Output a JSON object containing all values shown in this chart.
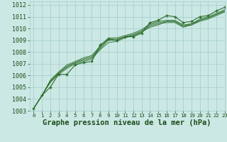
{
  "xlabel": "Graphe pression niveau de la mer (hPa)",
  "xlim": [
    -0.5,
    23
  ],
  "ylim": [
    1003,
    1012.3
  ],
  "yticks": [
    1003,
    1004,
    1005,
    1006,
    1007,
    1008,
    1009,
    1010,
    1011,
    1012
  ],
  "xticks": [
    0,
    1,
    2,
    3,
    4,
    5,
    6,
    7,
    8,
    9,
    10,
    11,
    12,
    13,
    14,
    15,
    16,
    17,
    18,
    19,
    20,
    21,
    22,
    23
  ],
  "bg_color": "#cce8e4",
  "grid_color": "#a0cccc",
  "line_color": "#2d6e2d",
  "series1": [
    1003.2,
    1004.3,
    1005.0,
    1006.1,
    1006.1,
    1006.9,
    1007.1,
    1007.2,
    1008.6,
    1009.1,
    1009.0,
    1009.3,
    1009.3,
    1009.6,
    1010.5,
    1010.7,
    1011.1,
    1011.0,
    1010.5,
    1010.6,
    1011.0,
    1011.1,
    1011.5,
    1011.8
  ],
  "series2": [
    1003.2,
    1004.3,
    1005.4,
    1006.1,
    1006.6,
    1007.0,
    1007.2,
    1007.4,
    1008.2,
    1008.8,
    1008.9,
    1009.2,
    1009.4,
    1009.7,
    1010.1,
    1010.3,
    1010.6,
    1010.6,
    1010.2,
    1010.4,
    1010.7,
    1010.9,
    1011.2,
    1011.5
  ],
  "series3": [
    1003.2,
    1004.3,
    1005.5,
    1006.2,
    1006.7,
    1007.1,
    1007.3,
    1007.5,
    1008.3,
    1009.0,
    1009.0,
    1009.3,
    1009.4,
    1009.7,
    1010.2,
    1010.4,
    1010.5,
    1010.5,
    1010.1,
    1010.3,
    1010.6,
    1010.8,
    1011.1,
    1011.4
  ],
  "series4": [
    1003.2,
    1004.3,
    1005.5,
    1006.2,
    1006.8,
    1007.1,
    1007.4,
    1007.6,
    1008.4,
    1009.1,
    1009.1,
    1009.3,
    1009.5,
    1009.8,
    1010.3,
    1010.5,
    1010.6,
    1010.6,
    1010.2,
    1010.3,
    1010.7,
    1010.9,
    1011.2,
    1011.5
  ],
  "series5": [
    1003.2,
    1004.3,
    1005.6,
    1006.3,
    1006.9,
    1007.2,
    1007.5,
    1007.7,
    1008.5,
    1009.2,
    1009.2,
    1009.4,
    1009.6,
    1009.9,
    1010.4,
    1010.6,
    1010.7,
    1010.7,
    1010.3,
    1010.4,
    1010.8,
    1011.0,
    1011.3,
    1011.6
  ],
  "font_color": "#1a4d1a",
  "xlabel_fontsize": 7.5,
  "tick_fontsize": 6
}
